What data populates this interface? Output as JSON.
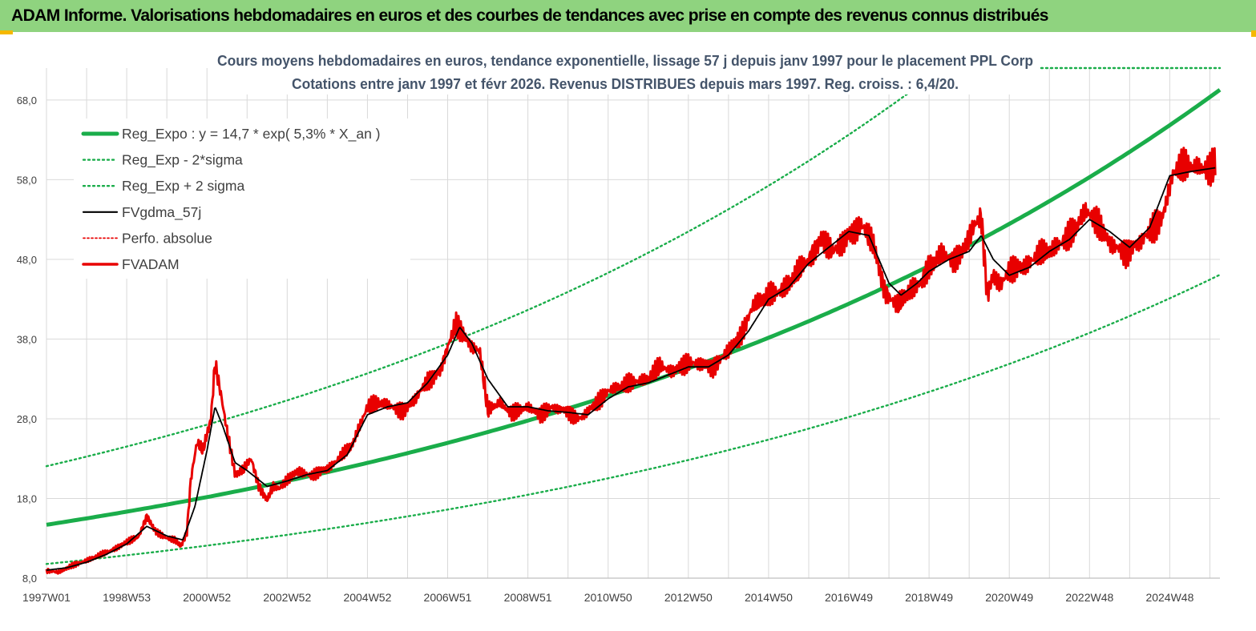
{
  "header": {
    "title": "ADAM Informe. Valorisations hebdomadaires en euros et des courbes de tendances avec prise en compte des revenus connus distribués"
  },
  "colors": {
    "banner": "#8fd37f",
    "trend": "#1aad4a",
    "band": "#1aad4a",
    "smooth": "#000000",
    "price": "#e80000",
    "perf": "#e80000",
    "grid": "#d9d9d9",
    "accent": "#f5b800"
  },
  "chart_data": {
    "type": "line",
    "title": "Cours moyens hebdomadaires en euros, tendance exponentielle, lissage 57 j depuis janv 1997 pour le placement PPL Corp",
    "subtitle": "Cotations entre janv 1997 et févr 2026. Revenus DISTRIBUES depuis mars 1997. Reg. croiss. : 6,4/20.",
    "xlabel": "",
    "ylabel": "",
    "x_range": [
      1997.0,
      2026.25
    ],
    "ylim": [
      8,
      72
    ],
    "y_ticks": [
      8,
      18,
      28,
      38,
      48,
      58,
      68
    ],
    "y_tick_labels": [
      "8,0",
      "18,0",
      "28,0",
      "38,0",
      "48,0",
      "58,0",
      "68,0"
    ],
    "x_ticks": [
      {
        "label": "1997W01",
        "x": 1997.0
      },
      {
        "label": "1998W53",
        "x": 1999.0
      },
      {
        "label": "2000W52",
        "x": 2001.0
      },
      {
        "label": "2002W52",
        "x": 2003.0
      },
      {
        "label": "2004W52",
        "x": 2005.0
      },
      {
        "label": "2006W51",
        "x": 2007.0
      },
      {
        "label": "2008W51",
        "x": 2009.0
      },
      {
        "label": "2010W50",
        "x": 2011.0
      },
      {
        "label": "2012W50",
        "x": 2013.0
      },
      {
        "label": "2014W50",
        "x": 2015.0
      },
      {
        "label": "2016W49",
        "x": 2017.0
      },
      {
        "label": "2018W49",
        "x": 2019.0
      },
      {
        "label": "2020W49",
        "x": 2021.0
      },
      {
        "label": "2022W48",
        "x": 2023.0
      },
      {
        "label": "2024W48",
        "x": 2025.0
      }
    ],
    "legend": [
      {
        "label": "Reg_Expo : y = 14,7 * exp( 5,3% *  X_an )",
        "key": "trend",
        "style": "thick"
      },
      {
        "label": "Reg_Exp - 2*sigma",
        "key": "lower",
        "style": "dotted"
      },
      {
        "label": "Reg_Exp + 2 sigma",
        "key": "upper",
        "style": "dotted"
      },
      {
        "label": "FVgdma_57j",
        "key": "smooth",
        "style": "solid"
      },
      {
        "label": "Perfo. absolue",
        "key": "perf",
        "style": "dotted"
      },
      {
        "label": "FVADAM",
        "key": "price",
        "style": "thick"
      }
    ],
    "legend_position": "top-left",
    "trend_model": {
      "a": 14.7,
      "growth": 0.053,
      "lower_factor": 0.665,
      "upper_factor": 1.5
    },
    "series": [
      {
        "name": "FVADAM",
        "x": [
          1997.0,
          1997.3,
          1997.6,
          1998.0,
          1998.5,
          1999.0,
          1999.3,
          1999.5,
          1999.7,
          2000.0,
          2000.2,
          2000.35,
          2000.5,
          2000.6,
          2000.75,
          2000.9,
          2001.1,
          2001.2,
          2001.35,
          2001.5,
          2001.7,
          2001.9,
          2002.1,
          2002.3,
          2002.5,
          2002.65,
          2002.8,
          2003.0,
          2003.3,
          2003.6,
          2004.0,
          2004.3,
          2004.6,
          2005.0,
          2005.3,
          2005.6,
          2005.9,
          2006.2,
          2006.5,
          2006.8,
          2007.0,
          2007.2,
          2007.4,
          2007.6,
          2007.8,
          2008.0,
          2008.3,
          2008.6,
          2009.0,
          2009.3,
          2009.6,
          2010.0,
          2010.3,
          2010.6,
          2011.0,
          2011.3,
          2011.6,
          2012.0,
          2012.3,
          2012.6,
          2013.0,
          2013.3,
          2013.6,
          2014.0,
          2014.3,
          2014.6,
          2015.0,
          2015.3,
          2015.6,
          2016.0,
          2016.3,
          2016.6,
          2017.0,
          2017.3,
          2017.6,
          2017.9,
          2018.2,
          2018.5,
          2018.8,
          2019.0,
          2019.3,
          2019.6,
          2019.9,
          2020.1,
          2020.3,
          2020.45,
          2020.6,
          2020.8,
          2021.0,
          2021.3,
          2021.6,
          2022.0,
          2022.3,
          2022.6,
          2022.9,
          2023.2,
          2023.5,
          2023.9,
          2024.2,
          2024.5,
          2024.8,
          2025.1,
          2025.4,
          2025.7,
          2026.0,
          2026.15
        ],
        "values": [
          9.0,
          8.7,
          9.5,
          10.2,
          11.2,
          12.5,
          13.2,
          15.8,
          14.0,
          13.0,
          12.8,
          12.0,
          13.8,
          20.5,
          25.0,
          24.0,
          28.0,
          35.0,
          31.0,
          26.5,
          21.0,
          21.5,
          23.0,
          19.5,
          17.8,
          19.5,
          19.2,
          20.5,
          21.5,
          20.8,
          21.8,
          23.0,
          24.5,
          29.5,
          30.0,
          29.5,
          29.0,
          30.5,
          33.0,
          33.8,
          37.0,
          40.0,
          38.5,
          37.0,
          36.5,
          29.0,
          30.0,
          28.5,
          29.5,
          28.5,
          29.5,
          29.0,
          28.0,
          29.5,
          31.5,
          32.0,
          32.5,
          33.0,
          34.5,
          34.0,
          35.0,
          35.0,
          34.5,
          36.5,
          38.5,
          42.0,
          43.5,
          44.0,
          45.5,
          48.0,
          50.5,
          49.0,
          51.0,
          52.5,
          50.0,
          44.0,
          42.0,
          44.0,
          45.0,
          47.0,
          48.5,
          48.0,
          49.5,
          52.0,
          53.5,
          43.5,
          46.0,
          45.0,
          46.5,
          47.0,
          48.0,
          49.0,
          50.0,
          51.5,
          54.0,
          53.0,
          50.0,
          49.0,
          50.0,
          51.5,
          53.0,
          59.0,
          59.5,
          59.5,
          59.0,
          60.0
        ]
      },
      {
        "name": "FVgdma_57j",
        "x": [
          1997.0,
          1997.5,
          1998.0,
          1998.5,
          1999.0,
          1999.5,
          2000.0,
          2000.4,
          2000.7,
          2001.0,
          2001.2,
          2001.4,
          2001.7,
          2002.0,
          2002.5,
          2003.0,
          2003.5,
          2004.0,
          2004.5,
          2005.0,
          2005.5,
          2006.0,
          2006.5,
          2007.0,
          2007.3,
          2007.6,
          2008.0,
          2008.5,
          2009.0,
          2009.5,
          2010.0,
          2010.5,
          2011.0,
          2011.5,
          2012.0,
          2012.5,
          2013.0,
          2013.5,
          2014.0,
          2014.5,
          2015.0,
          2015.5,
          2016.0,
          2016.5,
          2017.0,
          2017.5,
          2018.0,
          2018.3,
          2018.7,
          2019.0,
          2019.5,
          2020.0,
          2020.3,
          2020.6,
          2021.0,
          2021.5,
          2022.0,
          2022.5,
          2023.0,
          2023.5,
          2024.0,
          2024.5,
          2025.0,
          2025.5,
          2026.15
        ],
        "values": [
          9.0,
          9.3,
          10.0,
          11.0,
          12.3,
          14.5,
          13.3,
          12.8,
          17.0,
          24.0,
          29.5,
          27.0,
          22.5,
          21.5,
          19.5,
          20.2,
          21.0,
          21.5,
          23.5,
          28.5,
          29.5,
          30.0,
          32.5,
          36.0,
          39.5,
          37.5,
          33.0,
          29.5,
          29.5,
          29.0,
          28.8,
          28.5,
          30.5,
          32.0,
          32.5,
          33.5,
          34.5,
          34.5,
          36.0,
          39.0,
          43.0,
          44.5,
          47.5,
          49.5,
          51.5,
          51.0,
          45.0,
          43.5,
          45.0,
          46.5,
          48.0,
          49.0,
          51.0,
          48.0,
          46.0,
          47.0,
          49.0,
          50.5,
          53.0,
          51.5,
          49.5,
          52.0,
          58.5,
          59.0,
          59.5
        ]
      }
    ]
  }
}
